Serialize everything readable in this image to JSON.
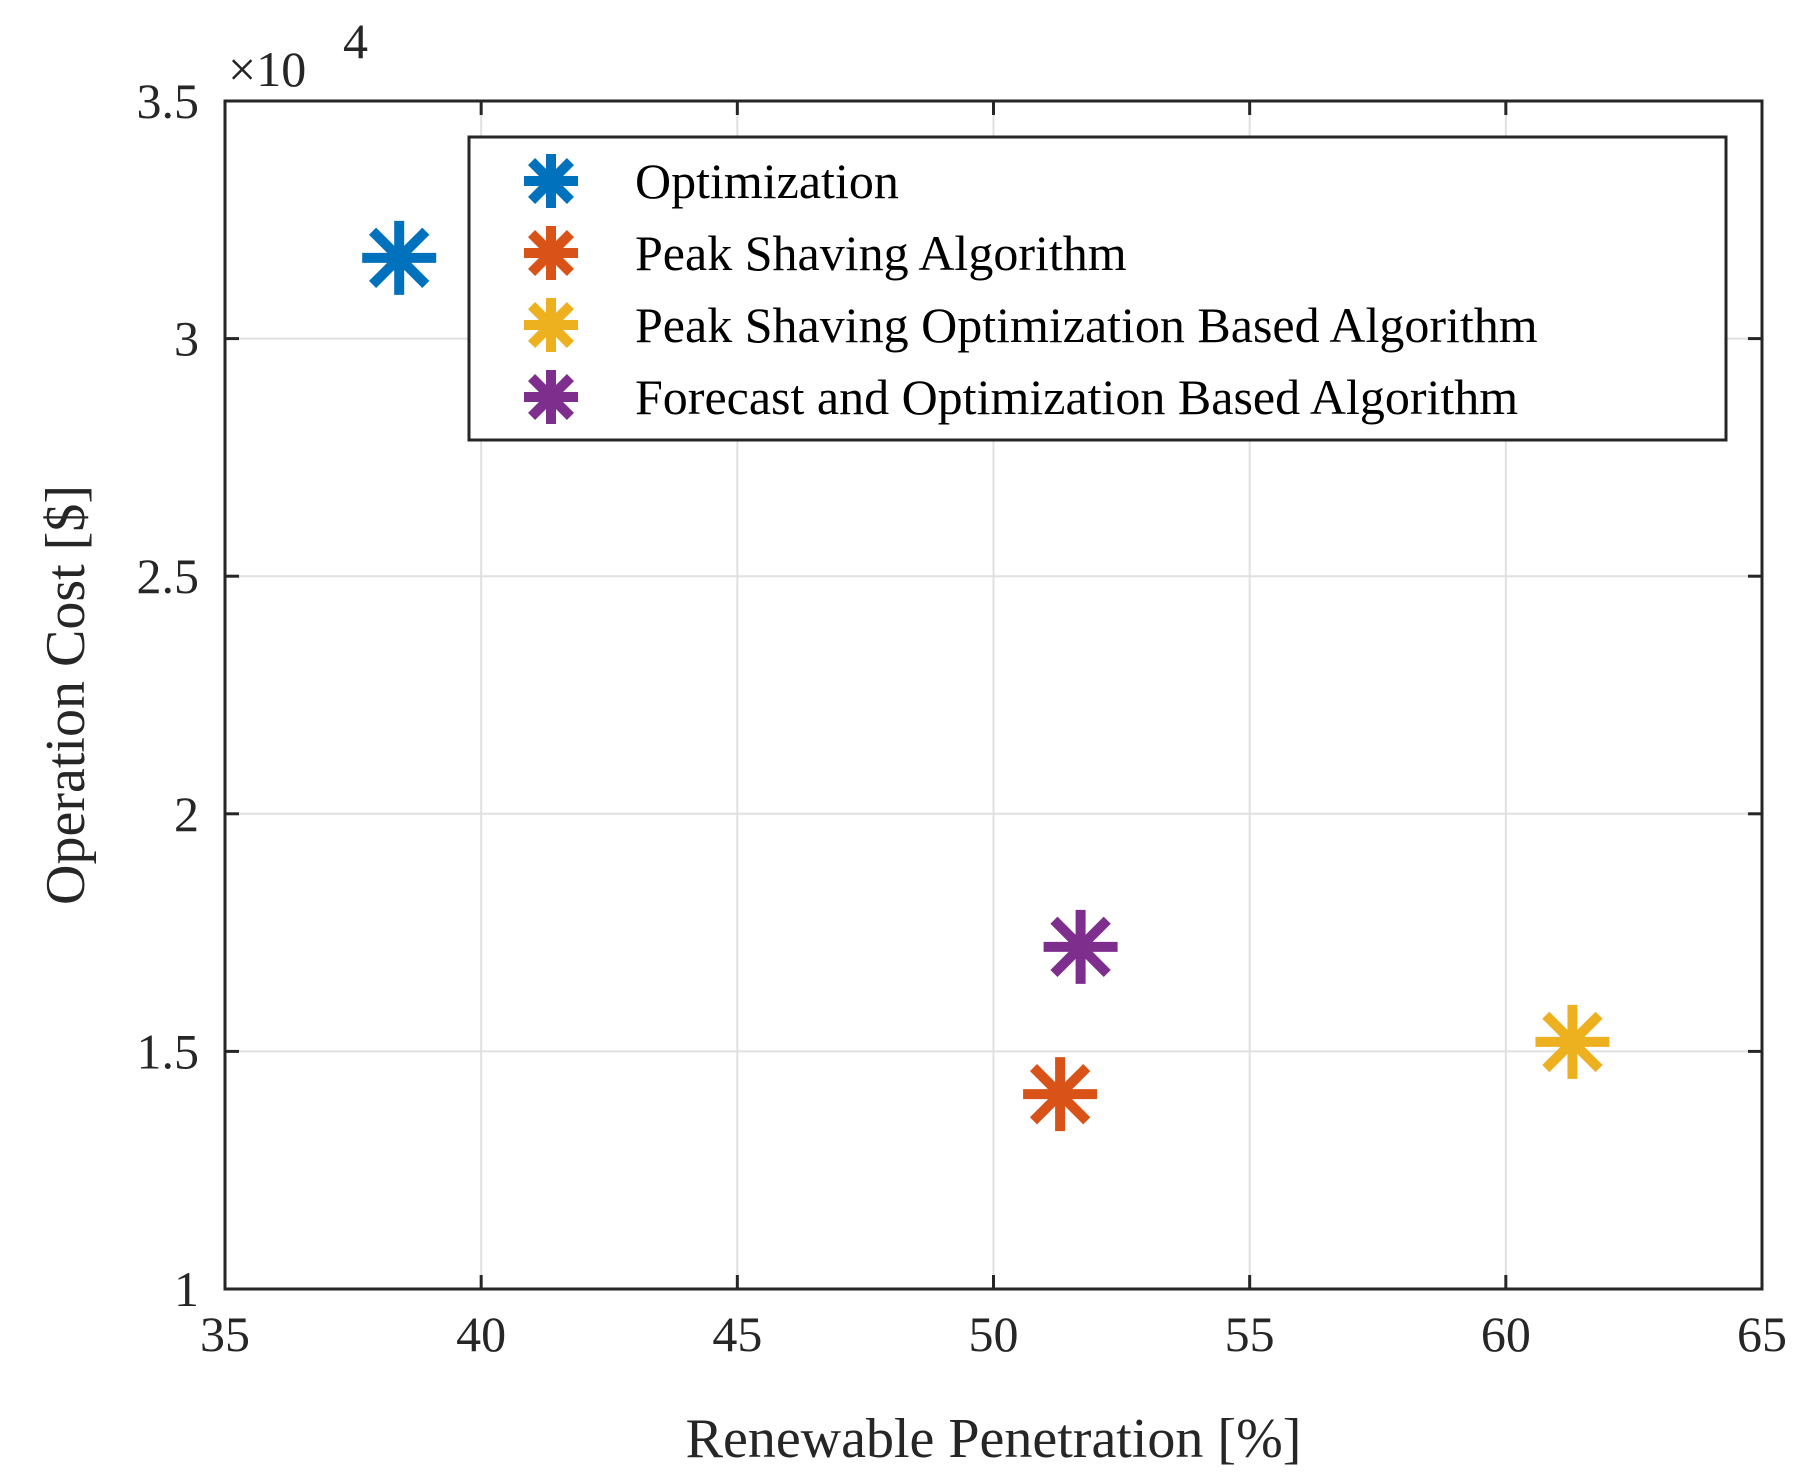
{
  "chart_data": {
    "type": "scatter",
    "title": "",
    "xlabel": "Renewable Penetration [%]",
    "ylabel": "Operation Cost [$]",
    "xlim": [
      35,
      65
    ],
    "ylim": [
      1,
      3.5
    ],
    "xticks": [
      "35",
      "40",
      "45",
      "50",
      "55",
      "60",
      "65"
    ],
    "yticks": [
      "1",
      "1.5",
      "2",
      "2.5",
      "3",
      "3.5"
    ],
    "y_multiplier_base": "×10",
    "y_multiplier_exp": "4",
    "grid": true,
    "legend_position": "top-right",
    "marker": "asterisk",
    "series": [
      {
        "name": "Optimization",
        "color": "#0072BD",
        "x": 38.4,
        "y": 3.17
      },
      {
        "name": "Peak Shaving Algorithm",
        "color": "#D95319",
        "x": 51.3,
        "y": 1.41
      },
      {
        "name": "Peak Shaving Optimization Based Algorithm",
        "color": "#EDB120",
        "x": 61.3,
        "y": 1.52
      },
      {
        "name": "Forecast and Optimization Based Algorithm",
        "color": "#7E2F8E",
        "x": 51.7,
        "y": 1.72
      }
    ]
  }
}
